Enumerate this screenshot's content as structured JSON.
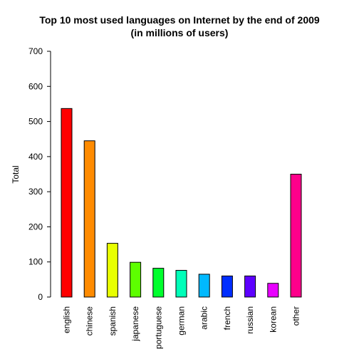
{
  "chart_data": {
    "type": "bar",
    "title": "Top 10 most used languages on Internet by the end of 2009",
    "subtitle": "(in millions of users)",
    "xlabel": "",
    "ylabel": "Total",
    "ylim": [
      0,
      700
    ],
    "yticks": [
      0,
      100,
      200,
      300,
      400,
      500,
      600,
      700
    ],
    "ytick_labels": [
      "0",
      "100",
      "200",
      "300",
      "400",
      "500",
      "600",
      "700"
    ],
    "grid": false,
    "legend": "none",
    "categories": [
      "english",
      "chinese",
      "spanish",
      "japanese",
      "portuguese",
      "german",
      "arabic",
      "french",
      "russian",
      "korean",
      "other"
    ],
    "values": [
      537,
      445,
      153,
      99,
      82,
      76,
      65,
      60,
      60,
      39,
      350
    ],
    "colors": [
      "#FF0000",
      "#FF8B00",
      "#E8FF00",
      "#5DFF00",
      "#00FF2E",
      "#00FFB9",
      "#00B9FF",
      "#002EFF",
      "#5D00FF",
      "#E800FF",
      "#FF008B"
    ]
  }
}
